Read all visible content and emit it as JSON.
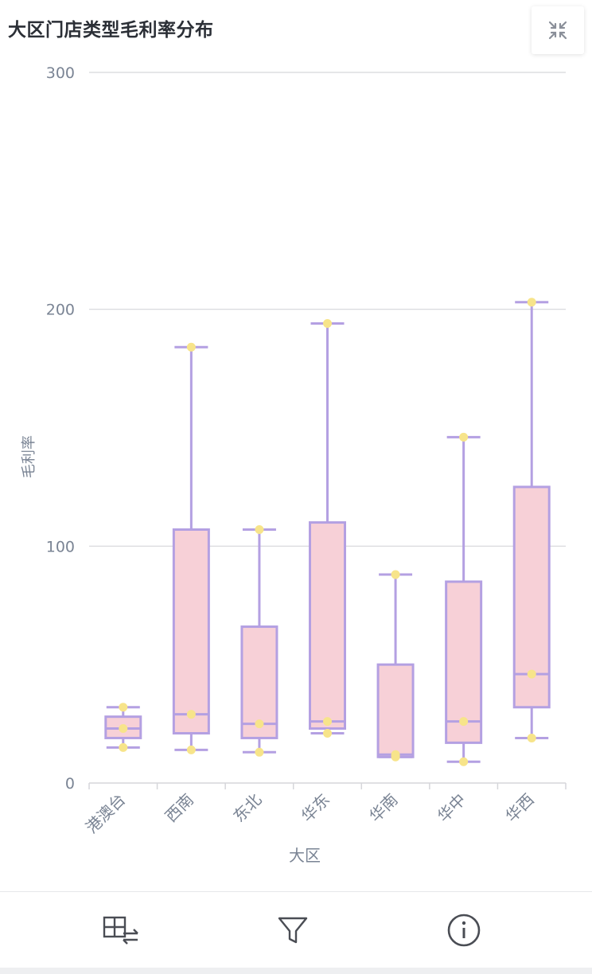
{
  "header": {
    "title": "大区门店类型毛利率分布"
  },
  "toolbar": {
    "collapse_icon": "collapse-arrows-icon"
  },
  "footer": {
    "icons": [
      "table-swap-icon",
      "filter-icon",
      "info-icon"
    ]
  },
  "colors": {
    "box_fill": "#f7d0d7",
    "box_stroke": "#b4a0e2",
    "point": "#f7e48a",
    "grid": "#d5d6da",
    "axis_text": "#7a8494",
    "title_text": "#2b2f36"
  },
  "chart_data": {
    "type": "boxplot",
    "title": "大区门店类型毛利率分布",
    "xlabel": "大区",
    "ylabel": "毛利率",
    "ylim": [
      0,
      300
    ],
    "yticks": [
      0,
      100,
      200,
      300
    ],
    "grid": true,
    "categories": [
      "港澳台",
      "西南",
      "东北",
      "华东",
      "华南",
      "华中",
      "华西"
    ],
    "boxes": [
      {
        "category": "港澳台",
        "min": 15,
        "q1": 19,
        "median": 23,
        "q3": 28,
        "max": 32
      },
      {
        "category": "西南",
        "min": 14,
        "q1": 21,
        "median": 29,
        "q3": 107,
        "max": 184
      },
      {
        "category": "东北",
        "min": 13,
        "q1": 19,
        "median": 25,
        "q3": 66,
        "max": 107
      },
      {
        "category": "华东",
        "min": 21,
        "q1": 23,
        "median": 26,
        "q3": 110,
        "max": 194
      },
      {
        "category": "华南",
        "min": 11,
        "q1": 11,
        "median": 12,
        "q3": 50,
        "max": 88
      },
      {
        "category": "华中",
        "min": 9,
        "q1": 17,
        "median": 26,
        "q3": 85,
        "max": 146
      },
      {
        "category": "华西",
        "min": 19,
        "q1": 32,
        "median": 46,
        "q3": 125,
        "max": 203
      }
    ]
  }
}
